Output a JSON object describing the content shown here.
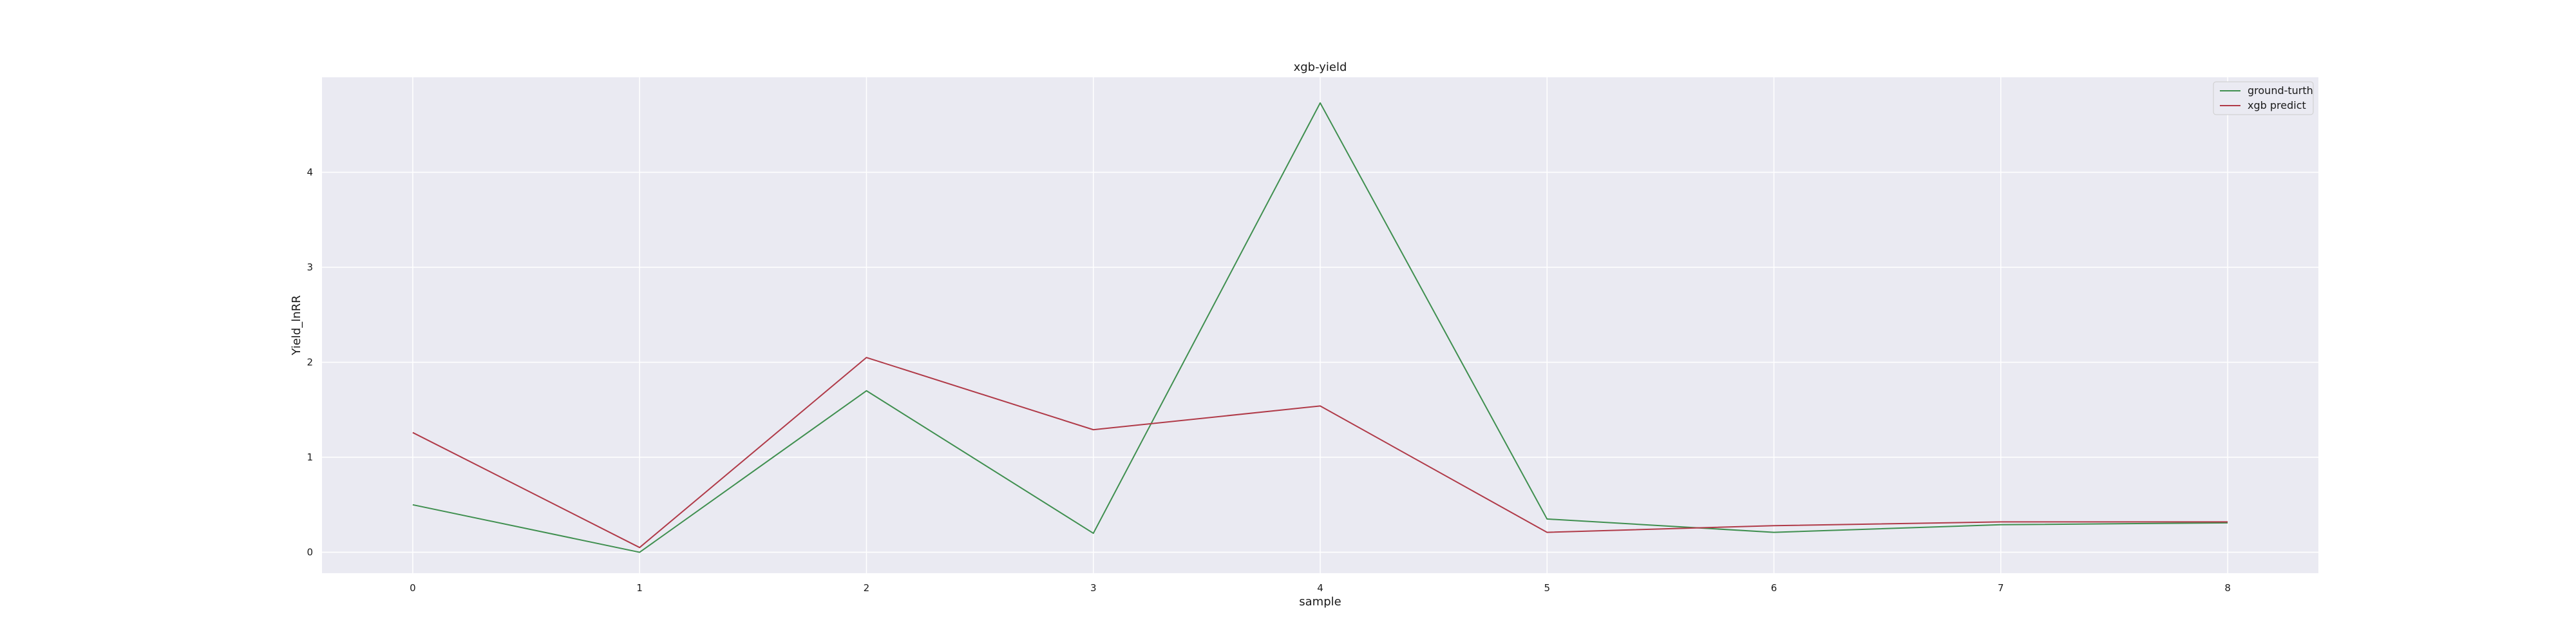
{
  "chart_data": {
    "type": "line",
    "title": "xgb-yield",
    "xlabel": "sample",
    "ylabel": "Yield_lnRR",
    "x": [
      0,
      1,
      2,
      3,
      4,
      5,
      6,
      7,
      8
    ],
    "xticks": [
      "0",
      "1",
      "2",
      "3",
      "4",
      "5",
      "6",
      "7",
      "8"
    ],
    "yticks": [
      "0",
      "1",
      "2",
      "3",
      "4"
    ],
    "xlim": [
      -0.4,
      8.4
    ],
    "ylim": [
      -0.22,
      5.0
    ],
    "grid": true,
    "legend_position": "top-right",
    "series": [
      {
        "name": "ground-turth",
        "color": "#3f8f4f",
        "values": [
          0.5,
          0.0,
          1.7,
          0.2,
          4.73,
          0.35,
          0.21,
          0.29,
          0.31
        ]
      },
      {
        "name": "xgb predict",
        "color": "#b03a48",
        "values": [
          1.26,
          0.05,
          2.05,
          1.29,
          1.54,
          0.21,
          0.28,
          0.32,
          0.32
        ]
      }
    ]
  },
  "colors": {
    "plot_background": "#eaeaf2",
    "grid": "#ffffff",
    "legend_background": "#eaeaf2",
    "legend_border": "#cccccc"
  }
}
